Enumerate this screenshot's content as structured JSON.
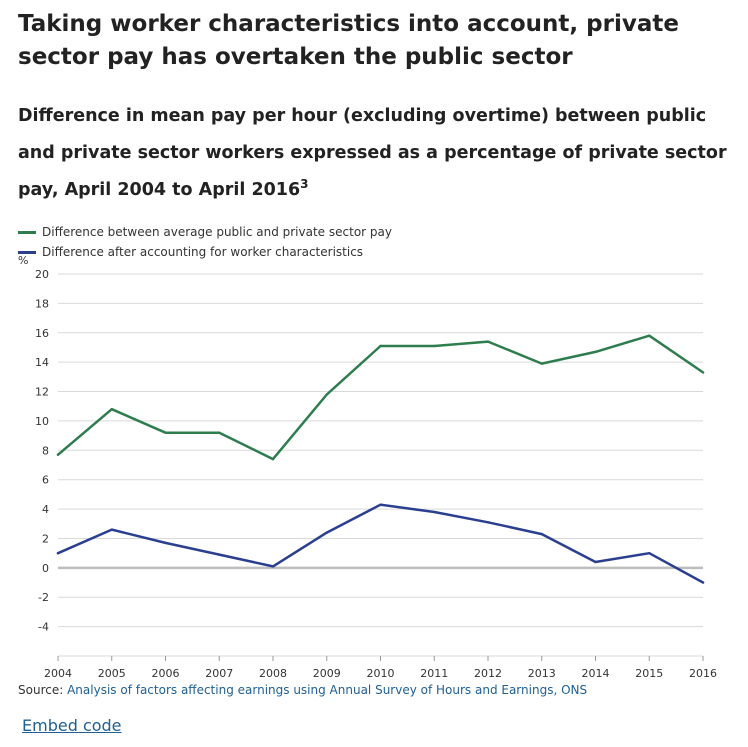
{
  "page": {
    "title": "Taking worker characteristics into account, private sector pay has overtaken the public sector",
    "subtitle": "Difference in mean pay per hour (excluding overtime) between public and private sector workers expressed as a percentage of private sector pay, April 2004 to April 2016",
    "subtitle_superscript": "3",
    "source_label": "Source:",
    "source_link": "Analysis of factors affecting earnings using Annual Survey of Hours and Earnings, ONS",
    "embed_label": "Embed code"
  },
  "colors": {
    "series_green": "#2e7d4f",
    "series_blue": "#2a3f8f",
    "link": "#206095",
    "grid": "#d9d9d9",
    "zero_line": "#bdbdbd"
  },
  "chart_data": {
    "type": "line",
    "ylabel": "%",
    "x": [
      "2004",
      "2005",
      "2006",
      "2007",
      "2008",
      "2009",
      "2010",
      "2011",
      "2012",
      "2013",
      "2014",
      "2015",
      "2016"
    ],
    "ylim": [
      -6,
      20
    ],
    "yticks": [
      -4,
      -2,
      0,
      2,
      4,
      6,
      8,
      10,
      12,
      14,
      16,
      18,
      20
    ],
    "grid": true,
    "legend_position": "top-left",
    "series": [
      {
        "name": "Difference between average public and private sector pay",
        "color": "#2e7d4f",
        "values": [
          7.7,
          10.8,
          9.2,
          9.2,
          7.4,
          11.8,
          15.1,
          15.1,
          15.4,
          13.9,
          14.7,
          15.8,
          13.3
        ]
      },
      {
        "name": "Difference after accounting for worker characteristics",
        "color": "#2a3f8f",
        "values": [
          1.0,
          2.6,
          1.7,
          0.9,
          0.1,
          2.4,
          4.3,
          3.8,
          3.1,
          2.3,
          0.4,
          1.0,
          -1.0
        ]
      }
    ]
  }
}
